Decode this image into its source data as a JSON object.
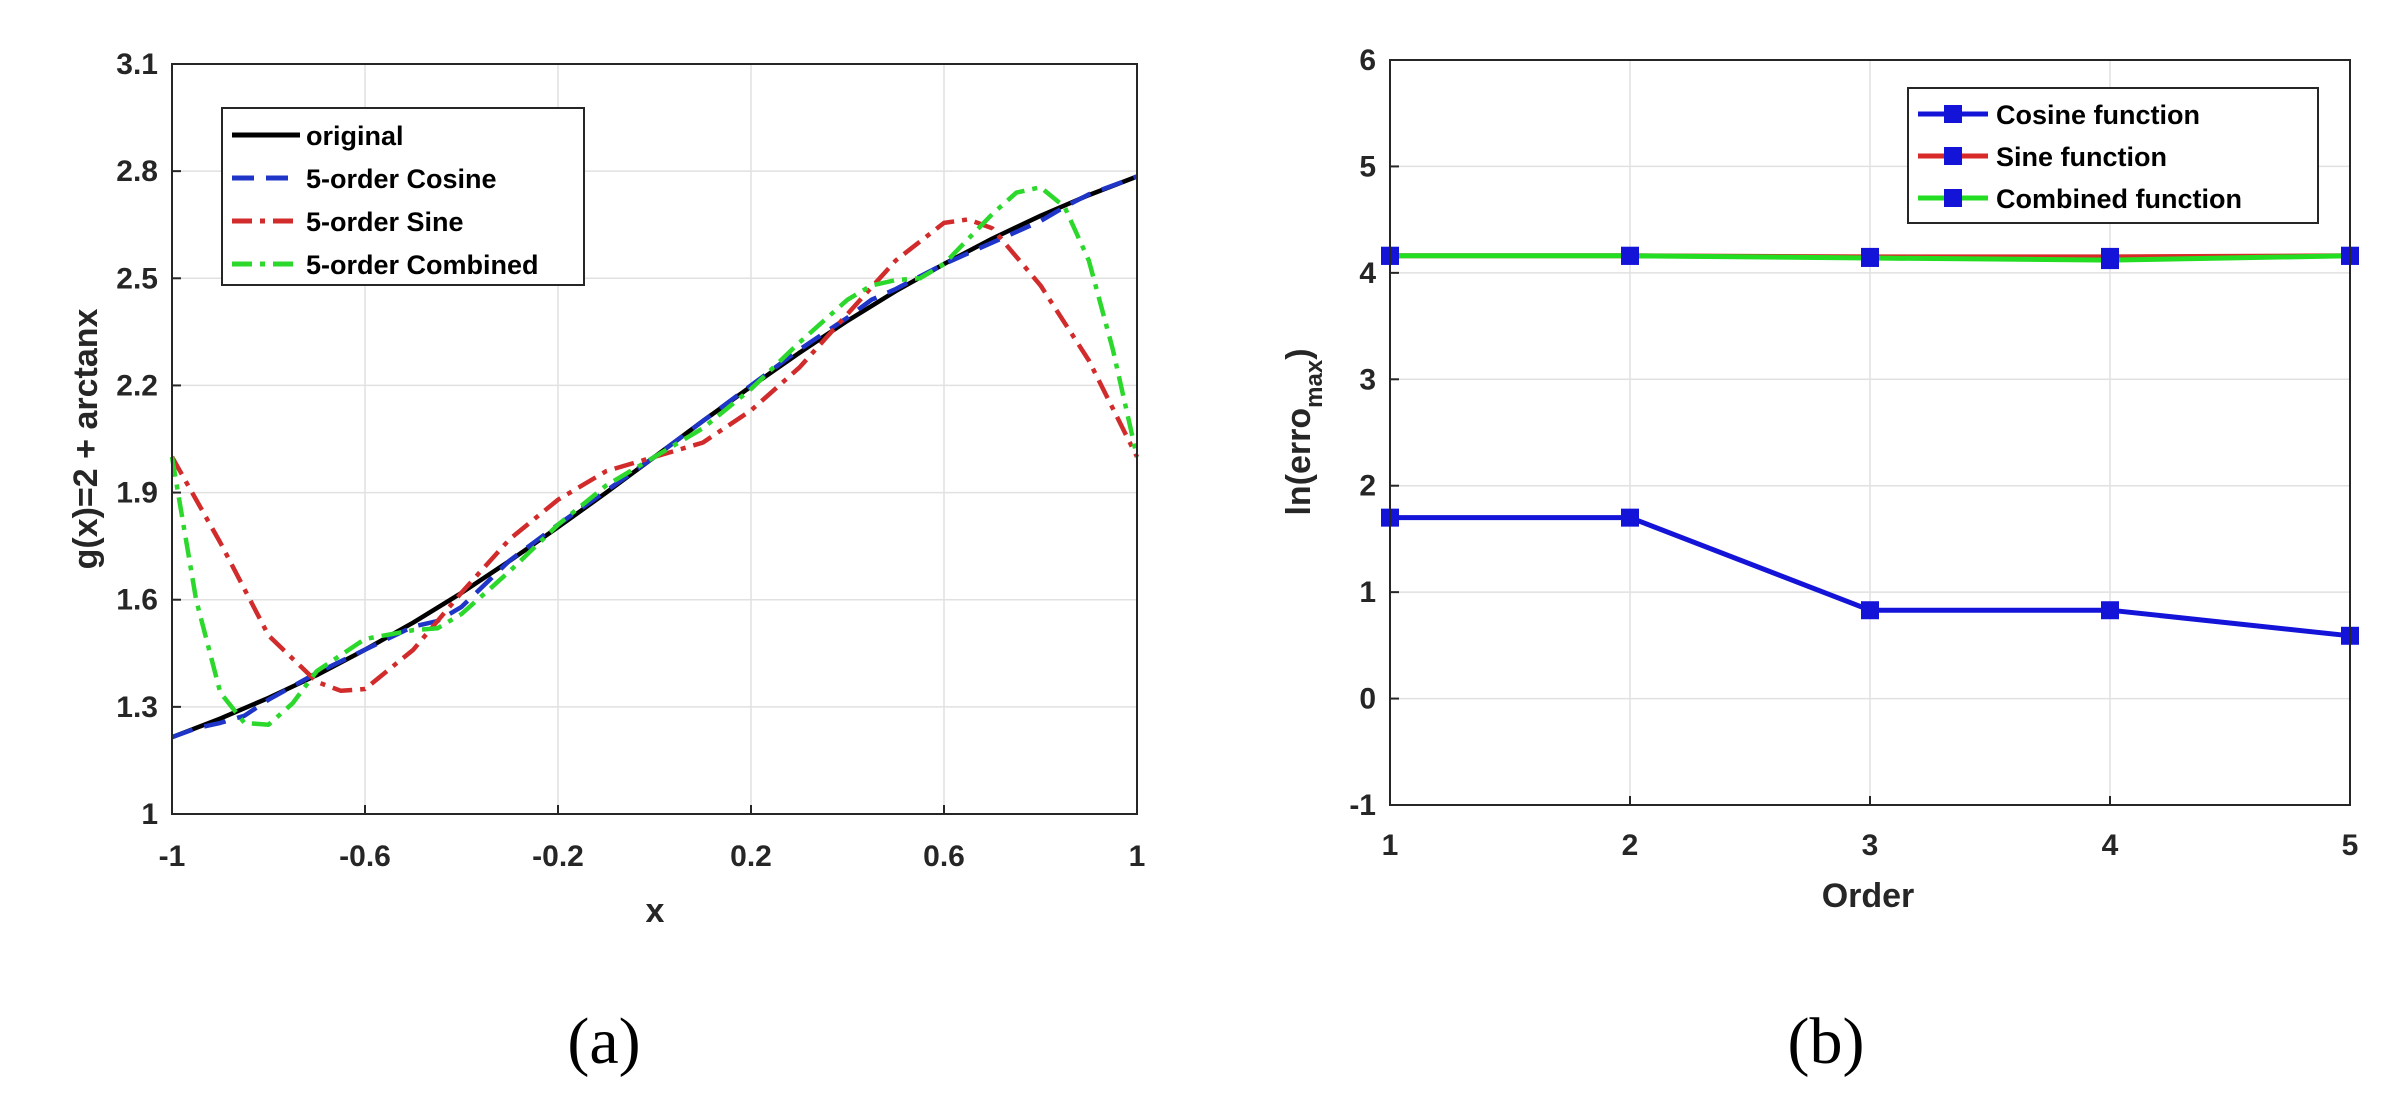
{
  "chart_data": [
    {
      "type": "line",
      "panel_label": "(a)",
      "xlabel": "x",
      "ylabel": "g(x)=2 + arctanx",
      "xlim": [
        -1,
        1
      ],
      "ylim": [
        1,
        3.1
      ],
      "xticks": [
        "-1",
        "-0.6",
        "-0.2",
        "0.2",
        "0.6",
        "1"
      ],
      "yticks": [
        "1",
        "1.3",
        "1.6",
        "1.9",
        "2.2",
        "2.5",
        "2.8",
        "3.1"
      ],
      "grid": true,
      "legend_position": "top-left",
      "series": [
        {
          "name": "original",
          "color": "#000000",
          "style": "solid",
          "x": [
            -1,
            -0.9,
            -0.8,
            -0.7,
            -0.6,
            -0.5,
            -0.4,
            -0.3,
            -0.2,
            -0.1,
            0,
            0.1,
            0.2,
            0.3,
            0.4,
            0.5,
            0.6,
            0.7,
            0.8,
            0.9,
            1
          ],
          "y": [
            1.215,
            1.267,
            1.325,
            1.389,
            1.46,
            1.536,
            1.619,
            1.709,
            1.803,
            1.9,
            2.0,
            2.1,
            2.197,
            2.291,
            2.381,
            2.464,
            2.54,
            2.611,
            2.675,
            2.733,
            2.785
          ]
        },
        {
          "name": "5-order Cosine",
          "color": "#1f35c8",
          "style": "dashed",
          "x": [
            -1,
            -0.95,
            -0.9,
            -0.85,
            -0.8,
            -0.7,
            -0.6,
            -0.5,
            -0.45,
            -0.4,
            -0.3,
            -0.2,
            -0.1,
            0,
            0.1,
            0.2,
            0.3,
            0.4,
            0.45,
            0.5,
            0.6,
            0.7,
            0.8,
            0.85,
            0.9,
            1
          ],
          "y": [
            1.215,
            1.24,
            1.255,
            1.275,
            1.32,
            1.395,
            1.46,
            1.525,
            1.54,
            1.58,
            1.71,
            1.81,
            1.905,
            2.0,
            2.1,
            2.2,
            2.3,
            2.39,
            2.44,
            2.47,
            2.54,
            2.6,
            2.66,
            2.7,
            2.735,
            2.785
          ]
        },
        {
          "name": "5-order Sine",
          "color": "#d12b2b",
          "style": "dashdot",
          "x": [
            -1,
            -0.9,
            -0.8,
            -0.7,
            -0.65,
            -0.6,
            -0.5,
            -0.4,
            -0.3,
            -0.2,
            -0.1,
            0,
            0.1,
            0.2,
            0.3,
            0.4,
            0.5,
            0.6,
            0.65,
            0.7,
            0.8,
            0.9,
            1
          ],
          "y": [
            2.0,
            1.76,
            1.5,
            1.37,
            1.345,
            1.35,
            1.46,
            1.62,
            1.77,
            1.88,
            1.96,
            2.0,
            2.04,
            2.13,
            2.25,
            2.4,
            2.55,
            2.655,
            2.665,
            2.64,
            2.48,
            2.27,
            2.0
          ]
        },
        {
          "name": "5-order Combined",
          "color": "#2bd82b",
          "style": "dashdot",
          "x": [
            -1,
            -0.95,
            -0.9,
            -0.85,
            -0.8,
            -0.75,
            -0.7,
            -0.6,
            -0.5,
            -0.45,
            -0.4,
            -0.3,
            -0.2,
            -0.1,
            0,
            0.1,
            0.2,
            0.3,
            0.4,
            0.45,
            0.5,
            0.55,
            0.6,
            0.7,
            0.75,
            0.8,
            0.85,
            0.9,
            0.95,
            1
          ],
          "y": [
            2.0,
            1.6,
            1.34,
            1.255,
            1.25,
            1.31,
            1.4,
            1.49,
            1.515,
            1.52,
            1.56,
            1.68,
            1.81,
            1.92,
            2.0,
            2.08,
            2.19,
            2.32,
            2.44,
            2.48,
            2.495,
            2.5,
            2.54,
            2.68,
            2.74,
            2.755,
            2.7,
            2.55,
            2.3,
            2.0
          ]
        }
      ]
    },
    {
      "type": "line",
      "panel_label": "(b)",
      "xlabel": "Order",
      "ylabel_main": "ln(erro",
      "ylabel_sub": "max",
      "ylabel_close": ")",
      "xlim": [
        1,
        5
      ],
      "ylim": [
        -1,
        6
      ],
      "xticks": [
        "1",
        "2",
        "3",
        "4",
        "5"
      ],
      "yticks": [
        "-1",
        "0",
        "1",
        "2",
        "3",
        "4",
        "5",
        "6"
      ],
      "grid": true,
      "legend_position": "top-right",
      "series": [
        {
          "name": "Cosine function",
          "color": "#1414d9",
          "marker": "square",
          "x": [
            1,
            2,
            3,
            4,
            5
          ],
          "y": [
            1.7,
            1.7,
            0.83,
            0.83,
            0.59
          ]
        },
        {
          "name": "Sine function",
          "color": "#d92a2a",
          "marker": "square",
          "x": [
            1,
            2,
            3,
            4,
            5
          ],
          "y": [
            4.16,
            4.16,
            4.15,
            4.15,
            4.16
          ]
        },
        {
          "name": "Combined function",
          "color": "#22dd22",
          "marker": "square",
          "x": [
            1,
            2,
            3,
            4,
            5
          ],
          "y": [
            4.16,
            4.16,
            4.14,
            4.12,
            4.16
          ]
        }
      ]
    }
  ]
}
